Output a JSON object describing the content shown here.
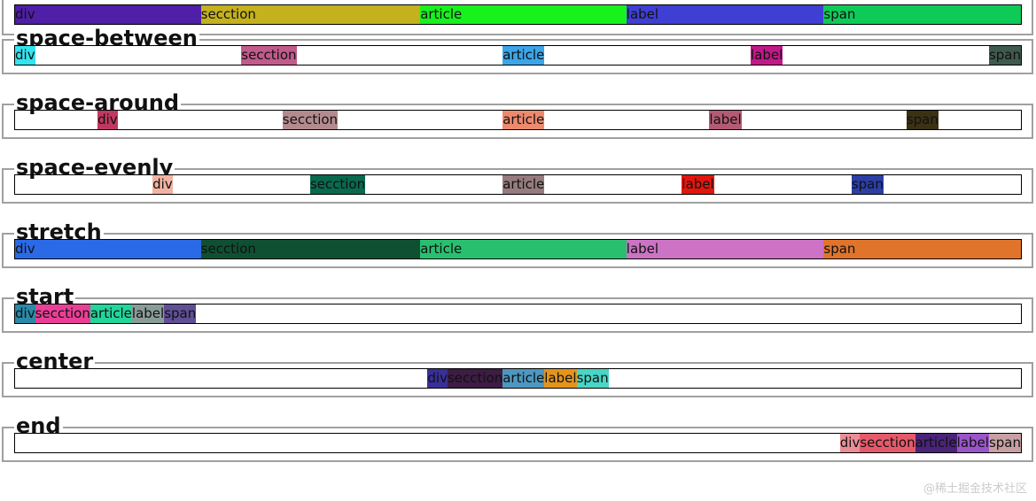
{
  "rows": [
    {
      "legend": "",
      "mode": "grow",
      "items": [
        {
          "label": "div",
          "color": "#4f1fa8",
          "weight": 210
        },
        {
          "label": "secction",
          "color": "#c4b11e",
          "weight": 248
        },
        {
          "label": "article",
          "color": "#17f21d",
          "weight": 233
        },
        {
          "label": "label",
          "color": "#3f3fd4",
          "weight": 223
        },
        {
          "label": "span",
          "color": "#0ecb58",
          "weight": 223
        }
      ]
    },
    {
      "legend": "space-between",
      "mode": "between",
      "items": [
        {
          "label": "div",
          "color": "#33e3ee"
        },
        {
          "label": "secction",
          "color": "#c05b8b"
        },
        {
          "label": "article",
          "color": "#3ba5e8"
        },
        {
          "label": "label",
          "color": "#bf1a87"
        },
        {
          "label": "span",
          "color": "#3f5a4e"
        }
      ]
    },
    {
      "legend": "space-around",
      "mode": "around",
      "items": [
        {
          "label": "div",
          "color": "#c03861"
        },
        {
          "label": "secction",
          "color": "#b38b8f"
        },
        {
          "label": "article",
          "color": "#ed8a6d"
        },
        {
          "label": "label",
          "color": "#b35b74"
        },
        {
          "label": "span",
          "color": "#3b3113"
        }
      ]
    },
    {
      "legend": "space-evenly",
      "mode": "evenly",
      "items": [
        {
          "label": "div",
          "color": "#f2b3a1"
        },
        {
          "label": "secction",
          "color": "#0a6a4d"
        },
        {
          "label": "article",
          "color": "#967b7f"
        },
        {
          "label": "label",
          "color": "#e3160f"
        },
        {
          "label": "span",
          "color": "#2b3fa5"
        }
      ]
    },
    {
      "legend": "stretch",
      "mode": "grow",
      "items": [
        {
          "label": "div",
          "color": "#2a6ae6",
          "weight": 210
        },
        {
          "label": "secction",
          "color": "#0f5033",
          "weight": 248
        },
        {
          "label": "article",
          "color": "#28c06f",
          "weight": 233
        },
        {
          "label": "label",
          "color": "#cc73c5",
          "weight": 223
        },
        {
          "label": "span",
          "color": "#e0742a",
          "weight": 223
        }
      ]
    },
    {
      "legend": "start",
      "mode": "start",
      "items": [
        {
          "label": "div",
          "color": "#2a8aa8"
        },
        {
          "label": "secction",
          "color": "#ea3f96"
        },
        {
          "label": "article",
          "color": "#23d59b"
        },
        {
          "label": "label",
          "color": "#8a9c98"
        },
        {
          "label": "span",
          "color": "#5f4f95"
        }
      ]
    },
    {
      "legend": "center",
      "mode": "center",
      "items": [
        {
          "label": "div",
          "color": "#3a2f98"
        },
        {
          "label": "secction",
          "color": "#3d1c45"
        },
        {
          "label": "article",
          "color": "#4e97c0"
        },
        {
          "label": "label",
          "color": "#e4941b"
        },
        {
          "label": "span",
          "color": "#48d6c6"
        }
      ]
    },
    {
      "legend": "end",
      "mode": "end",
      "items": [
        {
          "label": "div",
          "color": "#ea8d96"
        },
        {
          "label": "secction",
          "color": "#e55a6a"
        },
        {
          "label": "article",
          "color": "#4b2379"
        },
        {
          "label": "label",
          "color": "#9a55cb"
        },
        {
          "label": "span",
          "color": "#c7a0a4"
        }
      ]
    }
  ],
  "watermark": "@稀土掘金技术社区"
}
